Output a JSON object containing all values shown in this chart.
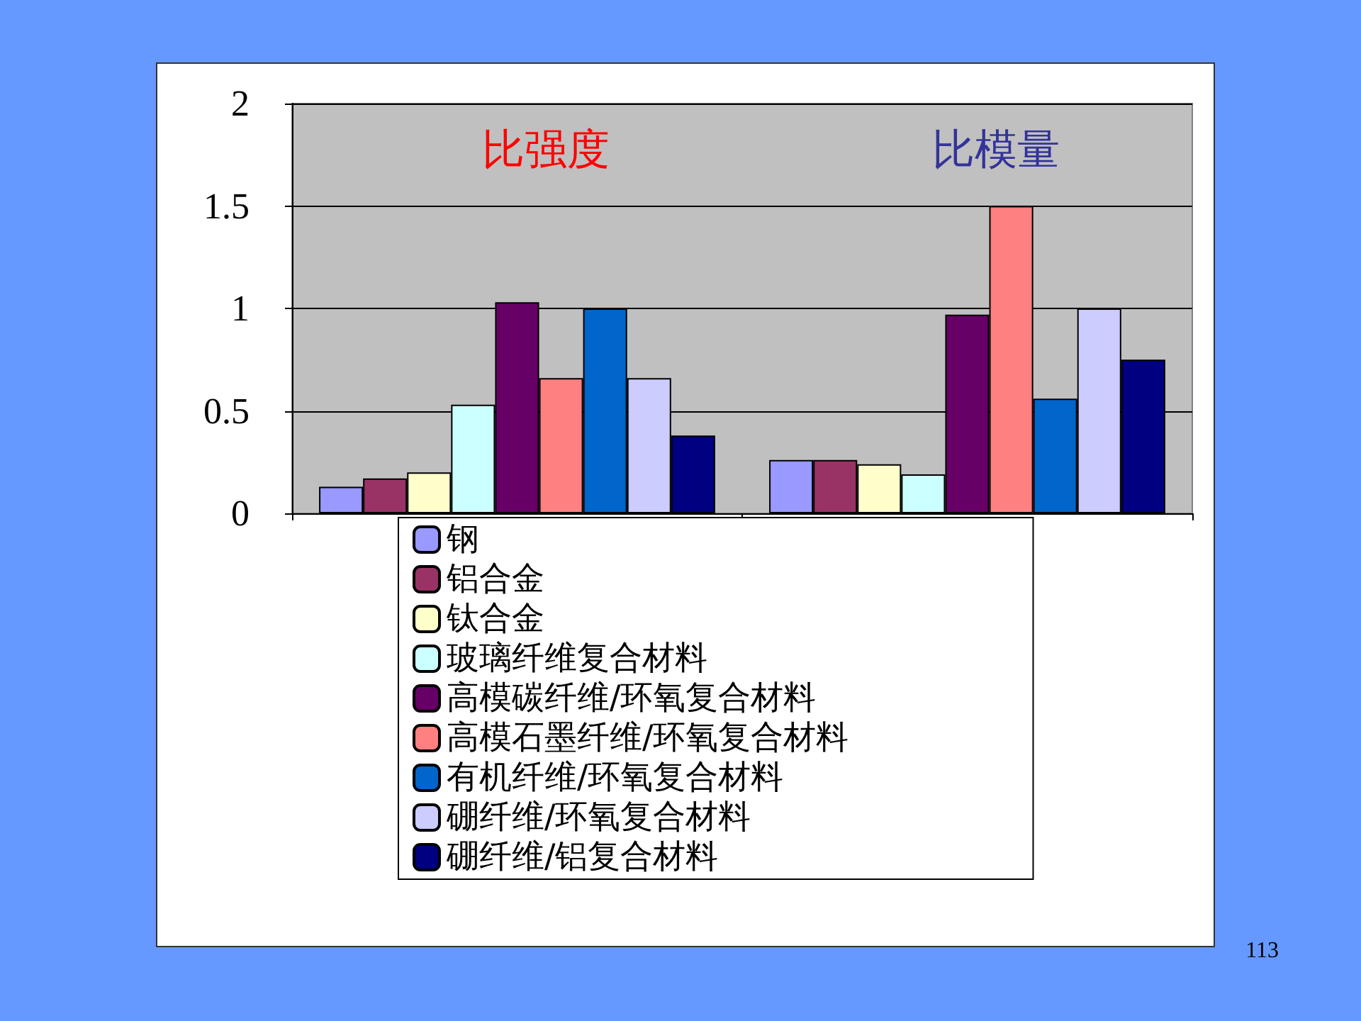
{
  "chart_data": {
    "type": "bar",
    "categories": [
      null,
      null
    ],
    "series": [
      {
        "name": "钢",
        "color": "#9999ff",
        "values": [
          0.13,
          0.26
        ]
      },
      {
        "name": "铝合金",
        "color": "#993366",
        "values": [
          0.17,
          0.26
        ]
      },
      {
        "name": "钛合金",
        "color": "#ffffcc",
        "values": [
          0.2,
          0.24
        ]
      },
      {
        "name": "玻璃纤维复合材料",
        "color": "#ccffff",
        "values": [
          0.53,
          0.19
        ]
      },
      {
        "name": "高模碳纤维/环氧复合材料",
        "color": "#660066",
        "values": [
          1.03,
          0.97
        ]
      },
      {
        "name": "高模石墨纤维/环氧复合材料",
        "color": "#ff8080",
        "values": [
          0.66,
          1.5
        ]
      },
      {
        "name": "有机纤维/环氧复合材料",
        "color": "#0066cc",
        "values": [
          1.0,
          0.56
        ]
      },
      {
        "name": "硼纤维/环氧复合材料",
        "color": "#ccccff",
        "values": [
          0.66,
          1.0
        ]
      },
      {
        "name": "硼纤维/铝复合材料",
        "color": "#000080",
        "values": [
          0.38,
          0.75
        ]
      }
    ],
    "ylim": [
      0,
      2
    ],
    "yticks": [
      0,
      0.5,
      1,
      1.5,
      2
    ],
    "grid": "y",
    "legend": "bottom",
    "annotations": [
      "比强度",
      "比模量",
      "113"
    ]
  }
}
